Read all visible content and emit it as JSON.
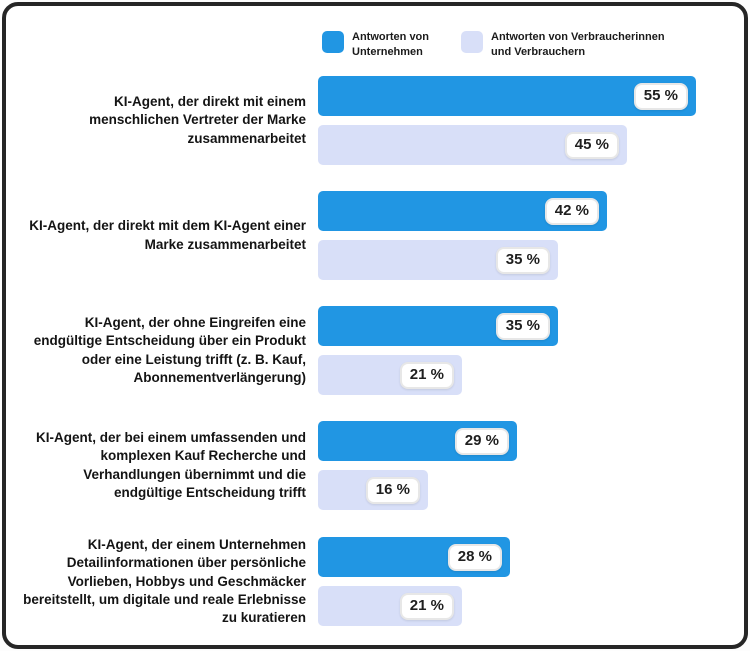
{
  "legend": {
    "items": [
      {
        "line1": "Antworten von",
        "line2": "Unternehmen",
        "color": "#2196e3"
      },
      {
        "line1": "Antworten von Verbraucherinnen",
        "line2": "und Verbrauchern",
        "color": "#d8dff8"
      }
    ]
  },
  "chart_data": {
    "type": "bar",
    "orientation": "horizontal",
    "title": "",
    "xlabel": "",
    "ylabel": "",
    "value_suffix": " %",
    "xlim": [
      0,
      58
    ],
    "grid": false,
    "legend_position": "top",
    "categories": [
      "KI-Agent, der direkt mit einem menschlichen Vertreter der Marke zusammenarbeitet",
      "KI-Agent, der direkt mit dem KI-Agent einer Marke zusammenarbeitet",
      "KI-Agent, der ohne Eingreifen eine endgültige Entscheidung über ein Produkt oder eine Leistung trifft (z. B. Kauf, Abonnementverlängerung)",
      "KI-Agent, der bei einem umfassenden und komplexen Kauf Recherche und Verhandlungen übernimmt und die endgültige Entscheidung trifft",
      "KI-Agent, der einem Unternehmen Detailinformationen über persönliche Vorlieben, Hobbys und Geschmäcker bereitstellt, um digitale und reale Erlebnisse zu kuratieren"
    ],
    "series": [
      {
        "name": "Antworten von Unternehmen",
        "color": "#2196e3",
        "values": [
          55,
          42,
          35,
          29,
          28
        ],
        "labels": [
          "55 %",
          "42 %",
          "35 %",
          "29 %",
          "28 %"
        ]
      },
      {
        "name": "Antworten von Verbraucherinnen und Verbrauchern",
        "color": "#d8dff8",
        "values": [
          45,
          35,
          21,
          16,
          21
        ],
        "labels": [
          "45 %",
          "35 %",
          "21 %",
          "16 %",
          "21 %"
        ]
      }
    ]
  }
}
